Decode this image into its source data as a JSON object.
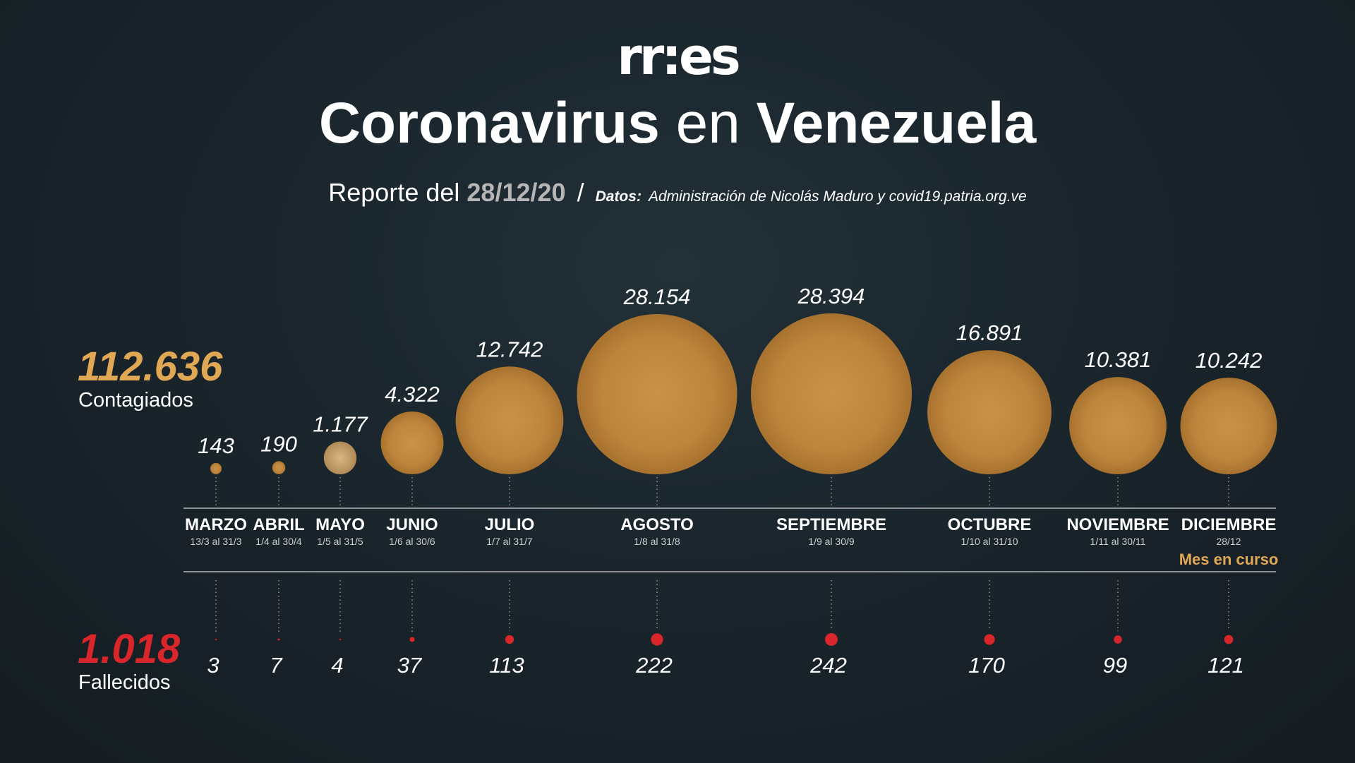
{
  "logo": "rr:es",
  "header": {
    "title_part1": "Coronavirus",
    "title_part2": "en",
    "title_part3": "Venezuela",
    "report_label": "Reporte del",
    "report_date": "28/12/20",
    "separator": "/",
    "source_label": "Datos:",
    "source_text": "Administración de Nicolás Maduro y covid19.patria.org.ve"
  },
  "totals": {
    "contagiados_value": "112.636",
    "contagiados_label": "Contagiados",
    "fallecidos_value": "1.018",
    "fallecidos_label": "Fallecidos"
  },
  "note_current_month": "Mes en curso",
  "colors": {
    "bubble": "#c48a3f",
    "contagiados_accent": "#e0a855",
    "fallecidos_accent": "#d8262a",
    "background": "#1a252c"
  },
  "chart_data": {
    "type": "bubble",
    "categories": [
      "MARZO",
      "ABRIL",
      "MAYO",
      "JUNIO",
      "JULIO",
      "AGOSTO",
      "SEPTIEMBRE",
      "OCTUBRE",
      "NOVIEMBRE",
      "DICIEMBRE"
    ],
    "date_ranges": [
      "13/3 al 31/3",
      "1/4 al 30/4",
      "1/5 al 31/5",
      "1/6 al 30/6",
      "1/7 al 31/7",
      "1/8 al 31/8",
      "1/9 al 30/9",
      "1/10 al  31/10",
      "1/11 al 30/11",
      "28/12"
    ],
    "series": [
      {
        "name": "Contagiados",
        "values": [
          143,
          190,
          1177,
          4322,
          12742,
          28154,
          28394,
          16891,
          10381,
          10242
        ],
        "labels": [
          "143",
          "190",
          "1.177",
          "4.322",
          "12.742",
          "28.154",
          "28.394",
          "16.891",
          "10.381",
          "10.242"
        ]
      },
      {
        "name": "Fallecidos",
        "values": [
          3,
          7,
          4,
          37,
          113,
          222,
          242,
          170,
          99,
          121
        ],
        "labels": [
          "3",
          "7",
          "4",
          "37",
          "113",
          "222",
          "242",
          "170",
          "99",
          "121"
        ]
      }
    ]
  }
}
